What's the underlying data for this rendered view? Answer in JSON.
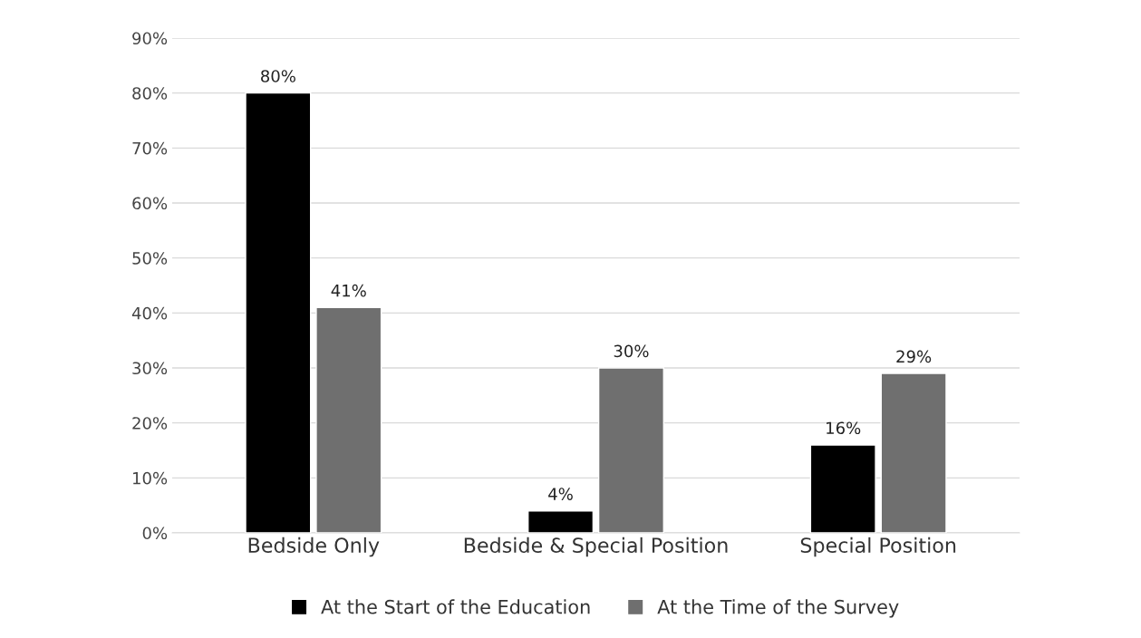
{
  "chart_data": {
    "type": "bar",
    "categories": [
      "Bedside Only",
      "Bedside & Special Position",
      "Special Position"
    ],
    "series": [
      {
        "name": "At the Start of the Education",
        "color": "#000000",
        "values": [
          80,
          4,
          16
        ],
        "value_labels": [
          "80%",
          "4%",
          "16%"
        ]
      },
      {
        "name": "At the Time of the Survey",
        "color": "#6f6f6f",
        "values": [
          41,
          30,
          29
        ],
        "value_labels": [
          "41%",
          "30%",
          "29%"
        ]
      }
    ],
    "ylim": [
      0,
      90
    ],
    "yticks": [
      {
        "value": 0,
        "label": "0%"
      },
      {
        "value": 10,
        "label": "10%"
      },
      {
        "value": 20,
        "label": "20%"
      },
      {
        "value": 30,
        "label": "30%"
      },
      {
        "value": 40,
        "label": "40%"
      },
      {
        "value": 50,
        "label": "50%"
      },
      {
        "value": 60,
        "label": "60%"
      },
      {
        "value": 70,
        "label": "70%"
      },
      {
        "value": 80,
        "label": "80%"
      },
      {
        "value": 90,
        "label": "90%"
      }
    ],
    "grid": "y",
    "legend": "bottom"
  }
}
